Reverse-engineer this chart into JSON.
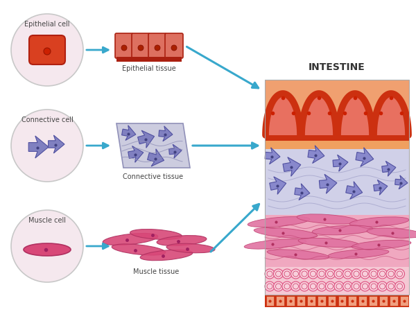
{
  "title": "INTESTINE",
  "labels": {
    "epithelial_cell": "Epithelial cell",
    "epithelial_tissue": "Epithelial tissue",
    "connective_cell": "Connective cell",
    "connective_tissue": "Connective tissue",
    "muscle_cell": "Muscle cell",
    "muscle_tissue": "Muscle tissue"
  },
  "colors": {
    "background": "#ffffff",
    "circle_fill": "#f5e8ee",
    "circle_edge": "#c8c8c8",
    "epithelial_cell_fill": "#d94020",
    "epithelial_cell_dark": "#b02010",
    "epithelial_tissue_fill": "#dd6050",
    "epithelial_tissue_dark": "#aa2010",
    "connective_cell_fill": "#8080c0",
    "connective_bg": "#c8c8e0",
    "muscle_cell_fill": "#d84878",
    "muscle_cell_dark": "#b03060",
    "intestine_epithelial_top": "#cc3010",
    "intestine_epithelial_fill": "#e88060",
    "intestine_connective_bg": "#d0d0e8",
    "intestine_muscle_bg": "#f0a8c0",
    "intestine_circle_bg": "#f5c8d4",
    "intestine_bottom_red": "#cc3010",
    "intestine_bottom_inner": "#f0a080",
    "arrow_color": "#38a8cc",
    "text_color": "#444444",
    "title_color": "#333333"
  }
}
